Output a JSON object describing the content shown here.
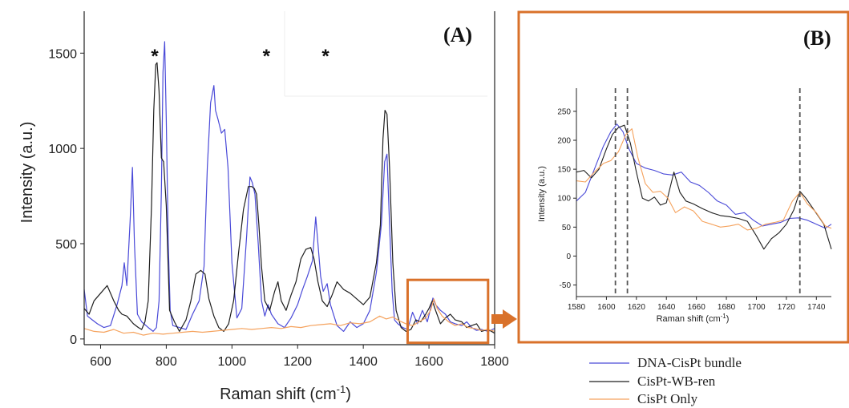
{
  "colors": {
    "blue": "#4a4ad8",
    "black": "#1e1e1e",
    "orange": "#f5a25d",
    "highlight": "#d9712a"
  },
  "chart_data": [
    {
      "type": "line",
      "panel_label": "(A)",
      "xlabel": "Raman shift (cm",
      "xlabel_sup": "-1",
      "xlabel_close": ")",
      "ylabel": "Intensity (a.u.)",
      "xlim": [
        550,
        1800
      ],
      "ylim": [
        -30,
        1720
      ],
      "xticks": [
        600,
        800,
        1000,
        1200,
        1400,
        1600,
        1800
      ],
      "xtick_labels": [
        "600",
        "800",
        "1000",
        "1200",
        "1400",
        "1600",
        "1800"
      ],
      "yticks": [
        0,
        500,
        1000,
        1500
      ],
      "ytick_labels": [
        "0",
        "500",
        "1000",
        "1500"
      ],
      "asterisks": [
        {
          "x": 765,
          "label": "*"
        },
        {
          "x": 1105,
          "label": "*"
        },
        {
          "x": 1285,
          "label": "*"
        }
      ],
      "highlight_box": {
        "x": [
          1535,
          1780
        ],
        "y": [
          -20,
          310
        ]
      },
      "series": [
        {
          "name": "DNA-CisPt bundle",
          "color_key": "blue",
          "x": [
            550,
            560,
            575,
            590,
            610,
            630,
            650,
            665,
            672,
            680,
            690,
            697,
            703,
            712,
            725,
            745,
            760,
            770,
            778,
            785,
            790,
            795,
            800,
            806,
            812,
            820,
            840,
            860,
            880,
            900,
            915,
            925,
            935,
            945,
            950,
            958,
            968,
            978,
            988,
            1000,
            1015,
            1030,
            1045,
            1055,
            1062,
            1070,
            1080,
            1090,
            1100,
            1110,
            1120,
            1140,
            1160,
            1180,
            1200,
            1215,
            1230,
            1245,
            1255,
            1262,
            1270,
            1278,
            1290,
            1300,
            1320,
            1340,
            1360,
            1380,
            1400,
            1420,
            1440,
            1455,
            1465,
            1472,
            1480,
            1488,
            1495,
            1505,
            1520,
            1535,
            1550,
            1565,
            1580,
            1595,
            1605,
            1612,
            1620,
            1635,
            1650,
            1665,
            1680,
            1700,
            1715,
            1730,
            1745,
            1760,
            1780,
            1800
          ],
          "y": [
            260,
            120,
            100,
            80,
            60,
            70,
            180,
            280,
            400,
            280,
            620,
            900,
            500,
            130,
            90,
            60,
            40,
            60,
            200,
            780,
            1400,
            1560,
            1150,
            500,
            150,
            70,
            60,
            50,
            130,
            200,
            380,
            900,
            1240,
            1330,
            1200,
            1150,
            1080,
            1100,
            900,
            400,
            110,
            160,
            550,
            850,
            820,
            760,
            500,
            200,
            120,
            180,
            130,
            80,
            60,
            110,
            180,
            260,
            330,
            410,
            640,
            500,
            330,
            250,
            290,
            180,
            70,
            40,
            90,
            60,
            80,
            150,
            350,
            600,
            930,
            970,
            600,
            250,
            100,
            80,
            60,
            50,
            140,
            80,
            150,
            90,
            160,
            215,
            180,
            150,
            130,
            90,
            80,
            70,
            90,
            60,
            45,
            50,
            40,
            55
          ]
        },
        {
          "name": "CisPt-WB-ren",
          "color_key": "black",
          "x": [
            550,
            565,
            580,
            600,
            620,
            640,
            655,
            665,
            680,
            700,
            715,
            725,
            735,
            745,
            755,
            762,
            768,
            772,
            778,
            785,
            792,
            800,
            810,
            825,
            840,
            860,
            875,
            890,
            905,
            918,
            930,
            945,
            960,
            975,
            990,
            1005,
            1020,
            1035,
            1050,
            1060,
            1068,
            1075,
            1082,
            1090,
            1100,
            1115,
            1130,
            1140,
            1150,
            1165,
            1180,
            1195,
            1210,
            1225,
            1240,
            1250,
            1262,
            1275,
            1290,
            1305,
            1320,
            1340,
            1360,
            1380,
            1400,
            1420,
            1440,
            1452,
            1460,
            1466,
            1472,
            1480,
            1490,
            1500,
            1515,
            1530,
            1545,
            1560,
            1575,
            1590,
            1600,
            1610,
            1620,
            1635,
            1650,
            1665,
            1680,
            1700,
            1715,
            1730,
            1745,
            1760,
            1780,
            1800
          ],
          "y": [
            160,
            130,
            200,
            240,
            280,
            200,
            150,
            130,
            120,
            80,
            60,
            50,
            90,
            200,
            700,
            1200,
            1440,
            1450,
            1300,
            950,
            930,
            700,
            150,
            90,
            40,
            100,
            200,
            340,
            360,
            340,
            210,
            120,
            60,
            40,
            80,
            200,
            450,
            680,
            800,
            800,
            790,
            760,
            600,
            380,
            200,
            150,
            250,
            300,
            200,
            150,
            230,
            300,
            420,
            470,
            480,
            420,
            300,
            200,
            170,
            230,
            300,
            260,
            240,
            210,
            180,
            220,
            400,
            600,
            1050,
            1200,
            1180,
            900,
            400,
            150,
            60,
            40,
            50,
            100,
            90,
            130,
            160,
            200,
            150,
            80,
            110,
            130,
            100,
            90,
            60,
            70,
            80,
            40,
            50,
            30
          ]
        },
        {
          "name": "CisPt Only",
          "color_key": "orange",
          "x": [
            550,
            580,
            610,
            640,
            670,
            700,
            730,
            760,
            790,
            820,
            850,
            880,
            910,
            940,
            970,
            1000,
            1030,
            1060,
            1090,
            1120,
            1150,
            1180,
            1210,
            1240,
            1270,
            1300,
            1330,
            1360,
            1390,
            1420,
            1450,
            1470,
            1490,
            1510,
            1530,
            1550,
            1570,
            1590,
            1605,
            1615,
            1625,
            1640,
            1660,
            1680,
            1700,
            1720,
            1740,
            1760,
            1780,
            1800
          ],
          "y": [
            55,
            40,
            35,
            50,
            30,
            35,
            20,
            30,
            25,
            30,
            35,
            40,
            35,
            40,
            45,
            50,
            55,
            50,
            55,
            60,
            55,
            65,
            60,
            70,
            75,
            80,
            70,
            85,
            80,
            90,
            120,
            105,
            115,
            95,
            80,
            70,
            90,
            110,
            150,
            210,
            160,
            120,
            90,
            70,
            80,
            60,
            55,
            45,
            50,
            40
          ]
        }
      ]
    },
    {
      "type": "line",
      "panel_label": "(B)",
      "xlabel": "Raman shift (cm",
      "xlabel_sup": "-1",
      "xlabel_close": ")",
      "ylabel": "Intensity (a.u.)",
      "xlim": [
        1580,
        1750
      ],
      "ylim": [
        -70,
        290
      ],
      "xticks": [
        1580,
        1600,
        1620,
        1640,
        1660,
        1680,
        1700,
        1720,
        1740
      ],
      "xtick_labels": [
        "1580",
        "1600",
        "1620",
        "1640",
        "1660",
        "1680",
        "1700",
        "1720",
        "1740"
      ],
      "yticks": [
        -50,
        0,
        50,
        100,
        150,
        200,
        250
      ],
      "ytick_labels": [
        "-50",
        "0",
        "50",
        "100",
        "150",
        "200",
        "250"
      ],
      "reference_lines": [
        1606,
        1614,
        1729
      ],
      "legend_placement": "bottom-right",
      "series": [
        {
          "name": "DNA-CisPt bundle",
          "color_key": "blue",
          "x": [
            1580,
            1586,
            1592,
            1598,
            1603,
            1607,
            1611,
            1615,
            1620,
            1626,
            1632,
            1638,
            1644,
            1650,
            1656,
            1662,
            1668,
            1674,
            1680,
            1686,
            1692,
            1698,
            1704,
            1710,
            1716,
            1722,
            1728,
            1734,
            1740,
            1746,
            1750
          ],
          "y": [
            95,
            110,
            150,
            190,
            215,
            228,
            215,
            185,
            160,
            152,
            148,
            142,
            140,
            145,
            128,
            122,
            110,
            95,
            88,
            72,
            75,
            62,
            52,
            55,
            58,
            65,
            66,
            62,
            55,
            48,
            55
          ]
        },
        {
          "name": "CisPt-WB-ren",
          "color_key": "black",
          "x": [
            1580,
            1585,
            1590,
            1595,
            1600,
            1604,
            1608,
            1612,
            1616,
            1620,
            1624,
            1628,
            1632,
            1636,
            1640,
            1645,
            1649,
            1653,
            1658,
            1664,
            1670,
            1676,
            1682,
            1688,
            1694,
            1700,
            1705,
            1710,
            1715,
            1720,
            1725,
            1729,
            1733,
            1737,
            1741,
            1745,
            1750
          ],
          "y": [
            145,
            148,
            135,
            150,
            185,
            210,
            222,
            226,
            195,
            145,
            100,
            95,
            102,
            88,
            92,
            145,
            110,
            95,
            90,
            82,
            75,
            70,
            68,
            65,
            60,
            35,
            12,
            30,
            40,
            55,
            80,
            112,
            100,
            85,
            70,
            55,
            12
          ]
        },
        {
          "name": "CisPt Only",
          "color_key": "orange",
          "x": [
            1580,
            1586,
            1592,
            1598,
            1603,
            1608,
            1613,
            1617,
            1621,
            1626,
            1631,
            1636,
            1641,
            1646,
            1652,
            1658,
            1664,
            1670,
            1676,
            1682,
            1688,
            1694,
            1700,
            1706,
            1712,
            1718,
            1724,
            1729,
            1734,
            1740,
            1746,
            1750
          ],
          "y": [
            130,
            128,
            145,
            160,
            165,
            180,
            210,
            220,
            170,
            125,
            110,
            112,
            100,
            75,
            85,
            78,
            60,
            55,
            50,
            52,
            55,
            45,
            48,
            55,
            58,
            62,
            95,
            110,
            90,
            75,
            52,
            48
          ]
        }
      ]
    }
  ]
}
